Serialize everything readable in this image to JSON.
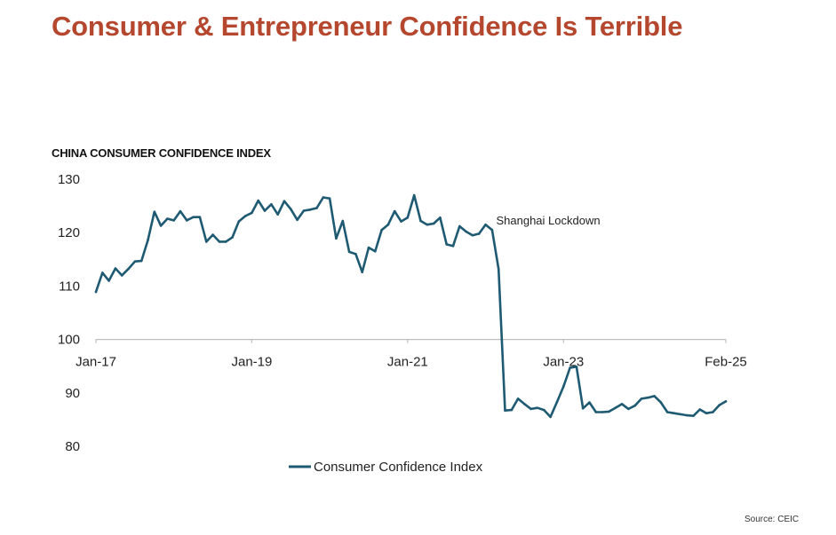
{
  "page": {
    "title": "Consumer & Entrepreneur Confidence Is Terrible",
    "source": "Source: CEIC"
  },
  "colors": {
    "title": "#b5472e",
    "line": "#1f5a73",
    "axis": "#bfbfbf"
  },
  "chart_data": {
    "type": "line",
    "title": "CHINA CONSUMER CONFIDENCE INDEX",
    "xlabel": "",
    "ylabel": "",
    "ylim": [
      80,
      130
    ],
    "y_ticks": [
      130,
      120,
      110,
      100,
      90,
      80
    ],
    "x_range": [
      "2017-01",
      "2025-02"
    ],
    "x_ticks": [
      {
        "label": "Jan-17",
        "x": "2017-01"
      },
      {
        "label": "Jan-19",
        "x": "2019-01"
      },
      {
        "label": "Jan-21",
        "x": "2021-01"
      },
      {
        "label": "Jan-23",
        "x": "2023-01"
      },
      {
        "label": "Feb-25",
        "x": "2025-02"
      }
    ],
    "x_axis_at_y": 100,
    "grid": false,
    "legend_position": "bottom",
    "annotations": [
      {
        "text": "Shanghai Lockdown",
        "x": "2022-04",
        "y": 123
      }
    ],
    "series": [
      {
        "name": "Consumer Confidence Index",
        "x": [
          "2017-01",
          "2017-02",
          "2017-03",
          "2017-04",
          "2017-05",
          "2017-06",
          "2017-07",
          "2017-08",
          "2017-09",
          "2017-10",
          "2017-11",
          "2017-12",
          "2018-01",
          "2018-02",
          "2018-03",
          "2018-04",
          "2018-05",
          "2018-06",
          "2018-07",
          "2018-08",
          "2018-09",
          "2018-10",
          "2018-11",
          "2018-12",
          "2019-01",
          "2019-02",
          "2019-03",
          "2019-04",
          "2019-05",
          "2019-06",
          "2019-07",
          "2019-08",
          "2019-09",
          "2019-10",
          "2019-11",
          "2019-12",
          "2020-01",
          "2020-02",
          "2020-03",
          "2020-04",
          "2020-05",
          "2020-06",
          "2020-07",
          "2020-08",
          "2020-09",
          "2020-10",
          "2020-11",
          "2020-12",
          "2021-01",
          "2021-02",
          "2021-03",
          "2021-04",
          "2021-05",
          "2021-06",
          "2021-07",
          "2021-08",
          "2021-09",
          "2021-10",
          "2021-11",
          "2021-12",
          "2022-01",
          "2022-02",
          "2022-03",
          "2022-04",
          "2022-05",
          "2022-06",
          "2022-07",
          "2022-08",
          "2022-09",
          "2022-10",
          "2022-11",
          "2022-12",
          "2023-01",
          "2023-02",
          "2023-03",
          "2023-04",
          "2023-05",
          "2023-06",
          "2023-07",
          "2023-08",
          "2023-09",
          "2023-10",
          "2023-11",
          "2023-12",
          "2024-01",
          "2024-02",
          "2024-03",
          "2024-04",
          "2024-05",
          "2024-06",
          "2024-07",
          "2024-08",
          "2024-09",
          "2024-10",
          "2024-11",
          "2024-12",
          "2025-01",
          "2025-02"
        ],
        "values": [
          108.9,
          112.5,
          111.0,
          113.3,
          112.0,
          113.2,
          114.6,
          114.7,
          118.6,
          123.9,
          121.3,
          122.6,
          122.3,
          124.0,
          122.3,
          122.9,
          122.9,
          118.3,
          119.6,
          118.3,
          118.3,
          119.1,
          122.1,
          123.1,
          123.7,
          126.0,
          124.1,
          125.3,
          123.4,
          125.9,
          124.4,
          122.4,
          124.1,
          124.3,
          124.6,
          126.6,
          126.4,
          118.9,
          122.2,
          116.4,
          116.0,
          112.6,
          117.2,
          116.5,
          120.5,
          121.5,
          124.0,
          122.1,
          122.8,
          127.0,
          122.2,
          121.5,
          121.7,
          122.8,
          117.8,
          117.5,
          121.2,
          120.2,
          119.5,
          119.8,
          121.5,
          120.5,
          113.2,
          86.7,
          86.8,
          88.9,
          87.9,
          87.0,
          87.2,
          86.8,
          85.5,
          88.3,
          91.2,
          94.7,
          94.9,
          87.1,
          88.2,
          86.4,
          86.4,
          86.5,
          87.2,
          87.9,
          87.0,
          87.6,
          88.9,
          89.1,
          89.4,
          88.2,
          86.4,
          86.2,
          86.0,
          85.8,
          85.7,
          86.9,
          86.2,
          86.4,
          87.7,
          88.4
        ]
      }
    ]
  }
}
